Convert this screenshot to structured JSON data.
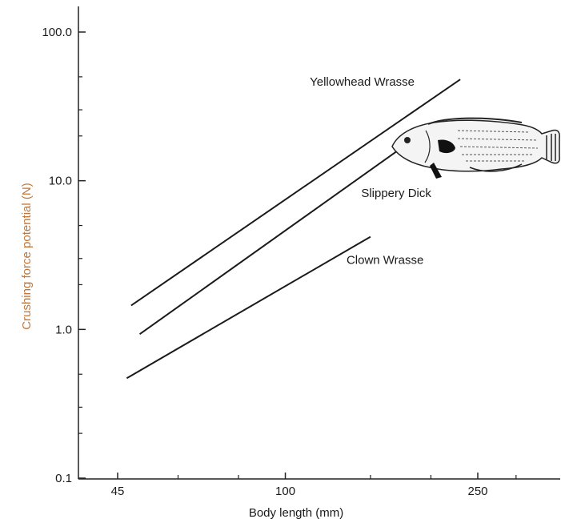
{
  "chart_data": {
    "type": "line",
    "title": "",
    "xlabel": "Body length (mm)",
    "ylabel": "Crushing force potential (N)",
    "x_scale": "log",
    "y_scale": "log",
    "xlim": [
      40,
      340
    ],
    "ylim": [
      0.1,
      150
    ],
    "x_ticks": [
      {
        "value": 45,
        "label": "45"
      },
      {
        "value": 100,
        "label": "100"
      },
      {
        "value": 250,
        "label": "250"
      }
    ],
    "y_ticks": [
      {
        "value": 0.1,
        "label": "0.1"
      },
      {
        "value": 1.0,
        "label": "1.0"
      },
      {
        "value": 10.0,
        "label": "10.0"
      },
      {
        "value": 100.0,
        "label": "100.0"
      }
    ],
    "grid": false,
    "legend": "none",
    "series": [
      {
        "name": "Yellowhead Wrasse",
        "x": [
          48,
          230
        ],
        "y": [
          1.45,
          48
        ]
      },
      {
        "name": "Slippery Dick",
        "x": [
          50,
          171
        ],
        "y": [
          0.93,
          16
        ]
      },
      {
        "name": "Clown Wrasse",
        "x": [
          47,
          150
        ],
        "y": [
          0.47,
          4.2
        ]
      }
    ],
    "colors": {
      "line": "#1a1a1a",
      "ylabel": "#c0763a",
      "fish_fill": "#f2f2f2"
    },
    "illustration": "wrasse-fish-drawing"
  }
}
